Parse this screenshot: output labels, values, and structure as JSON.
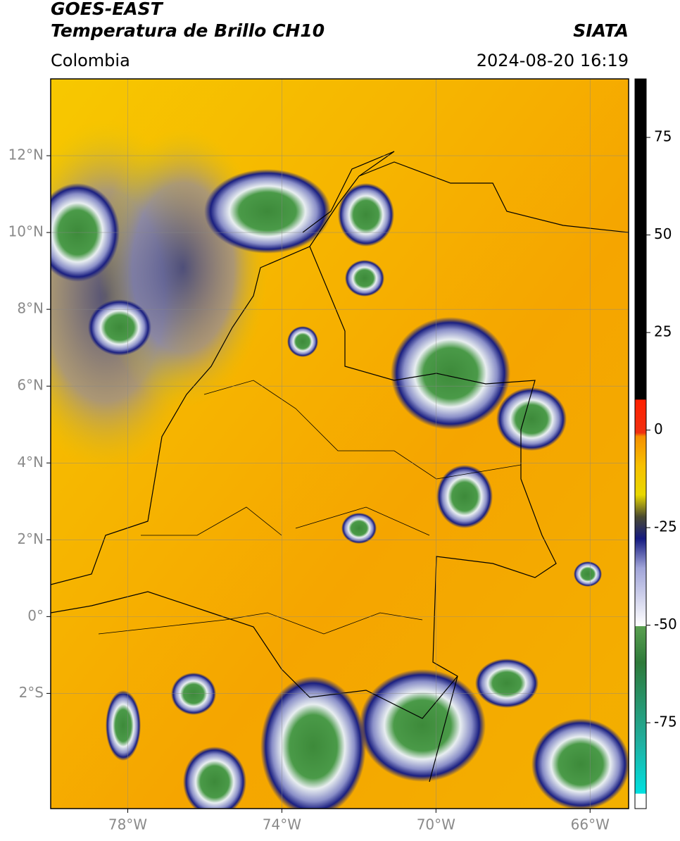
{
  "header": {
    "title": "GOES-EAST",
    "subtitle": "Temperatura de Brillo CH10",
    "region": "Colombia",
    "source": "SIATA",
    "timestamp": "2024-08-20 16:19"
  },
  "map": {
    "xlim": [
      -80,
      -65
    ],
    "ylim": [
      -5,
      14
    ],
    "xticks": [
      {
        "value": -78,
        "label": "78°W"
      },
      {
        "value": -74,
        "label": "74°W"
      },
      {
        "value": -70,
        "label": "70°W"
      },
      {
        "value": -66,
        "label": "66°W"
      }
    ],
    "yticks": [
      {
        "value": -2,
        "label": "2°S"
      },
      {
        "value": 0,
        "label": "0°"
      },
      {
        "value": 2,
        "label": "2°N"
      },
      {
        "value": 4,
        "label": "4°N"
      },
      {
        "value": 6,
        "label": "6°N"
      },
      {
        "value": 8,
        "label": "8°N"
      },
      {
        "value": 10,
        "label": "10°N"
      },
      {
        "value": 12,
        "label": "12°N"
      }
    ],
    "grid": true
  },
  "colorbar": {
    "lim": [
      -97,
      90
    ],
    "ticks": [
      -75,
      -50,
      -25,
      0,
      25,
      50,
      75
    ]
  }
}
